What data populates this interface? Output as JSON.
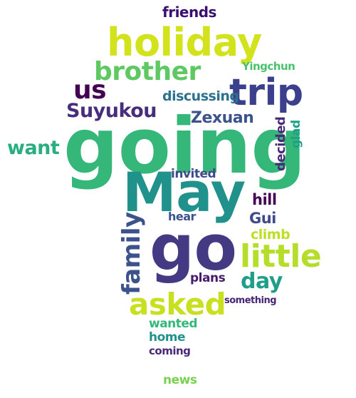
{
  "palette": {
    "dark_purple": "#440154",
    "indigo": "#3b3f8c",
    "slate_blue": "#3b528b",
    "teal": "#21918c",
    "green": "#35b779",
    "teal_green": "#1fa187",
    "lime": "#b5de2b",
    "yellow_green": "#d2e21b"
  },
  "words": [
    {
      "text": "going",
      "color": "#35b779"
    },
    {
      "text": "May",
      "color": "#21918c"
    },
    {
      "text": "go",
      "color": "#443983"
    },
    {
      "text": "holiday",
      "color": "#d2e21b"
    },
    {
      "text": "trip",
      "color": "#3b3f8c"
    },
    {
      "text": "little",
      "color": "#b5de2b"
    },
    {
      "text": "asked",
      "color": "#c8e020"
    },
    {
      "text": "brother",
      "color": "#5ec962"
    },
    {
      "text": "family",
      "color": "#3b528b"
    },
    {
      "text": "us",
      "color": "#440154"
    },
    {
      "text": "Suyukou",
      "color": "#472d7b"
    },
    {
      "text": "want",
      "color": "#28ae80"
    },
    {
      "text": "day",
      "color": "#1f9e89"
    },
    {
      "text": "Zexuan",
      "color": "#3b528b"
    },
    {
      "text": "friends",
      "color": "#3b0f70"
    },
    {
      "text": "discussing",
      "color": "#2c728e"
    },
    {
      "text": "decided",
      "color": "#482878"
    },
    {
      "text": "glad",
      "color": "#1fa187"
    },
    {
      "text": "Yingchun",
      "color": "#4ac16d"
    },
    {
      "text": "invited",
      "color": "#3e4a89"
    },
    {
      "text": "hill",
      "color": "#440154"
    },
    {
      "text": "Gui",
      "color": "#3e4a89"
    },
    {
      "text": "hear",
      "color": "#3b528b"
    },
    {
      "text": "climb",
      "color": "#bddf26"
    },
    {
      "text": "plans",
      "color": "#481a6c"
    },
    {
      "text": "something",
      "color": "#482475"
    },
    {
      "text": "wanted",
      "color": "#35b779"
    },
    {
      "text": "home",
      "color": "#21918c"
    },
    {
      "text": "coming",
      "color": "#482878"
    },
    {
      "text": "news",
      "color": "#7ad151"
    }
  ]
}
